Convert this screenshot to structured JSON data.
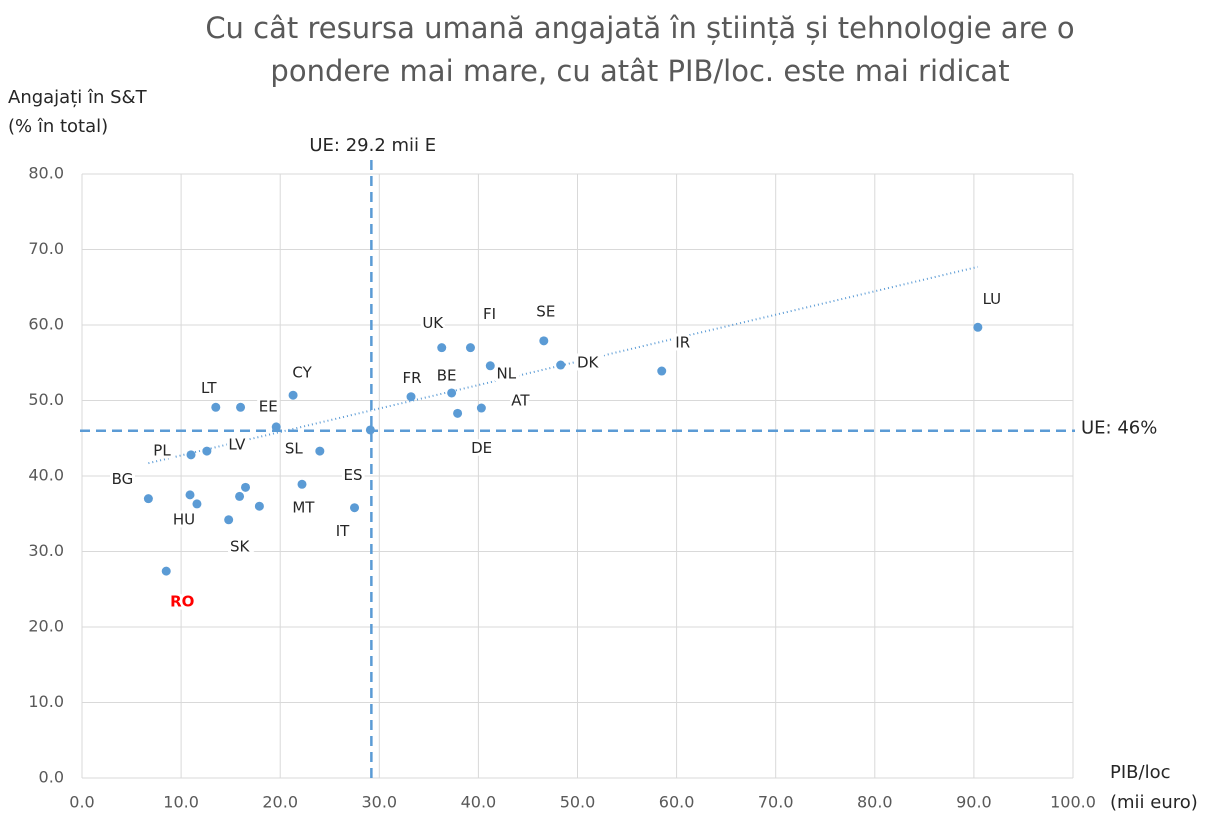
{
  "chart_data": {
    "type": "scatter",
    "title": [
      "Cu cât resursa umană angajată în știință și tehnologie are o",
      "pondere mai mare, cu atât PIB/loc. este mai ridicat"
    ],
    "y_label": [
      "Angajați în S&T",
      "(% în total)"
    ],
    "x_label": [
      "PIB/loc",
      "(mii euro)"
    ],
    "color": "#5b9bd5",
    "highlight_color": "#ff0000",
    "highlight": "RO",
    "grid": true,
    "xlim": [
      0,
      100
    ],
    "ylim": [
      0,
      80
    ],
    "xticks": [
      {
        "value": 0,
        "label": "0.0"
      },
      {
        "value": 10,
        "label": "10.0"
      },
      {
        "value": 20,
        "label": "20.0"
      },
      {
        "value": 30,
        "label": "30.0"
      },
      {
        "value": 40,
        "label": "40.0"
      },
      {
        "value": 50,
        "label": "50.0"
      },
      {
        "value": 60,
        "label": "60.0"
      },
      {
        "value": 70,
        "label": "70.0"
      },
      {
        "value": 80,
        "label": "80.0"
      },
      {
        "value": 90,
        "label": "90.0"
      },
      {
        "value": 100,
        "label": "100.0"
      }
    ],
    "yticks": [
      {
        "value": 0,
        "label": "0.0"
      },
      {
        "value": 10,
        "label": "10.0"
      },
      {
        "value": 20,
        "label": "20.0"
      },
      {
        "value": 30,
        "label": "30.0"
      },
      {
        "value": 40,
        "label": "40.0"
      },
      {
        "value": 50,
        "label": "50.0"
      },
      {
        "value": 60,
        "label": "60.0"
      },
      {
        "value": 70,
        "label": "70.0"
      },
      {
        "value": 80,
        "label": "80.0"
      }
    ],
    "labels": [
      "LU",
      "IR",
      "DK",
      "SE",
      "NL",
      "FI",
      "UK",
      "BE",
      "AT",
      "DE",
      "FR",
      "CY",
      "EE",
      "LT",
      "PL",
      "LV",
      "SL",
      "ES",
      "MT",
      "IT",
      "SK",
      "HU",
      "BG",
      "RO",
      null,
      null,
      null,
      null,
      null
    ],
    "x": [
      90.4,
      58.5,
      48.3,
      46.6,
      41.2,
      39.2,
      36.3,
      37.3,
      40.3,
      37.9,
      33.2,
      21.3,
      19.6,
      13.5,
      11.0,
      12.6,
      24.0,
      22.2,
      17.9,
      27.5,
      14.8,
      10.9,
      6.7,
      8.5,
      29.1,
      16.0,
      11.6,
      16.5,
      15.9
    ],
    "y": [
      59.7,
      53.9,
      54.7,
      57.9,
      54.6,
      57.0,
      57.0,
      51.0,
      49.0,
      48.3,
      50.5,
      50.7,
      46.5,
      49.1,
      42.8,
      43.3,
      43.3,
      38.9,
      36.0,
      35.8,
      34.2,
      37.5,
      37.0,
      27.4,
      46.1,
      49.1,
      36.3,
      38.5,
      37.3
    ],
    "reference_lines": [
      {
        "axis": "x",
        "value": 29.2,
        "label": "UE: 29.2 mii E"
      },
      {
        "axis": "y",
        "value": 46,
        "label": "UE: 46%"
      }
    ],
    "trendline": {
      "x": [
        6.7,
        90.4
      ],
      "y": [
        41.7,
        67.7
      ]
    }
  }
}
